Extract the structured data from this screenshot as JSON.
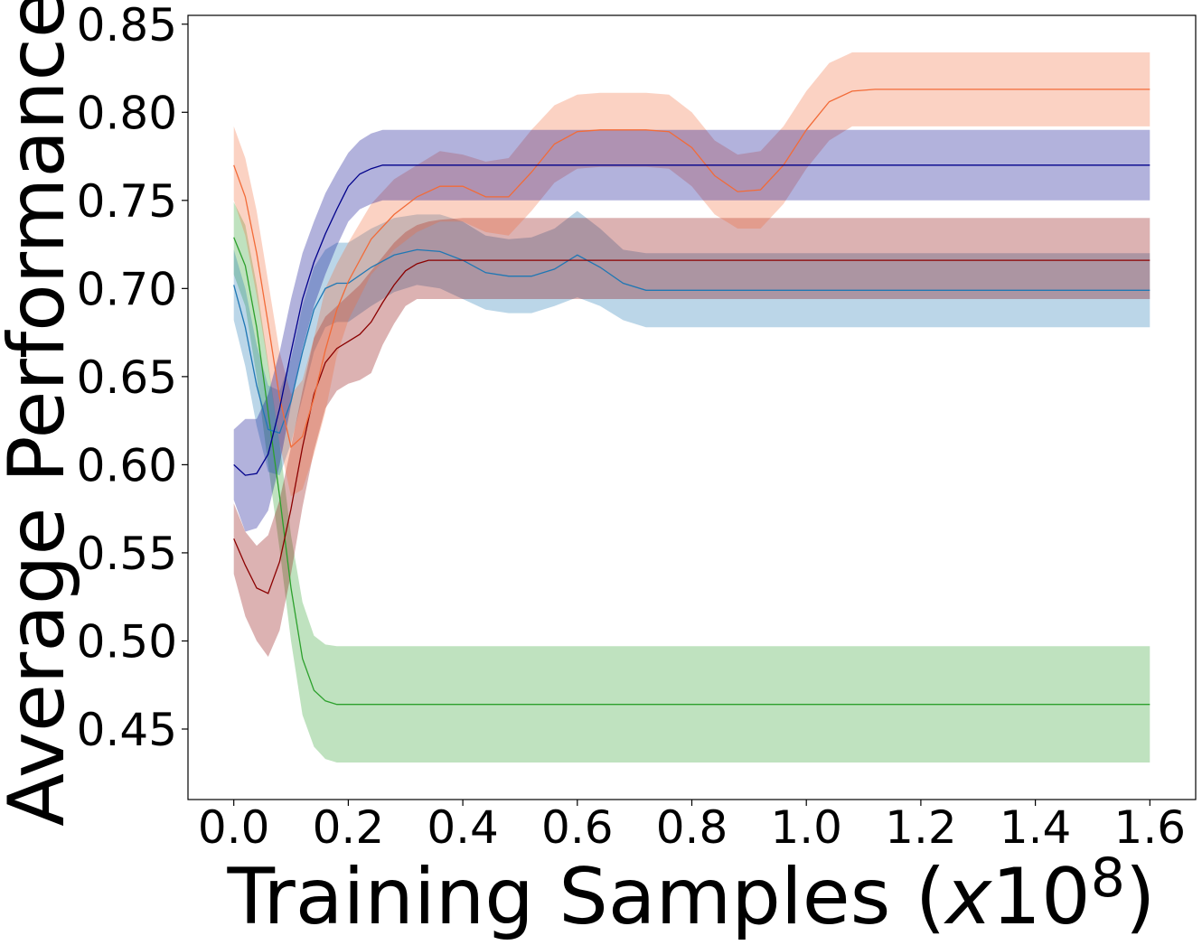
{
  "chart_data": {
    "type": "line",
    "xlabel": "Training Samples (",
    "xlabel_italic": "x",
    "xlabel_tail": "10",
    "xlabel_exponent": "8",
    "xlabel_close": ")",
    "ylabel": "Average Performance",
    "xlim": [
      -0.08,
      1.68
    ],
    "ylim": [
      0.41,
      0.855
    ],
    "x_ticks": [
      "0.0",
      "0.2",
      "0.4",
      "0.6",
      "0.8",
      "1.0",
      "1.2",
      "1.4",
      "1.6"
    ],
    "x_tick_values": [
      0.0,
      0.2,
      0.4,
      0.6,
      0.8,
      1.0,
      1.2,
      1.4,
      1.6
    ],
    "y_ticks": [
      "0.45",
      "0.50",
      "0.55",
      "0.60",
      "0.65",
      "0.70",
      "0.75",
      "0.80",
      "0.85"
    ],
    "y_tick_values": [
      0.45,
      0.5,
      0.55,
      0.6,
      0.65,
      0.7,
      0.75,
      0.8,
      0.85
    ],
    "grid": false,
    "band_opacity": 0.3,
    "series": [
      {
        "color": "#2ca02c",
        "x": [
          0.0,
          0.02,
          0.04,
          0.06,
          0.08,
          0.1,
          0.12,
          0.14,
          0.16,
          0.18,
          0.2,
          0.3,
          0.4,
          0.6,
          0.8,
          1.0,
          1.2,
          1.4,
          1.6
        ],
        "y": [
          0.729,
          0.713,
          0.678,
          0.63,
          0.582,
          0.53,
          0.49,
          0.472,
          0.466,
          0.464,
          0.464,
          0.464,
          0.464,
          0.464,
          0.464,
          0.464,
          0.464,
          0.464,
          0.464
        ],
        "upper": [
          0.749,
          0.736,
          0.702,
          0.658,
          0.612,
          0.56,
          0.522,
          0.503,
          0.498,
          0.497,
          0.497,
          0.497,
          0.497,
          0.497,
          0.497,
          0.497,
          0.497,
          0.497,
          0.497
        ],
        "lower": [
          0.708,
          0.69,
          0.65,
          0.6,
          0.552,
          0.5,
          0.458,
          0.44,
          0.433,
          0.431,
          0.431,
          0.431,
          0.431,
          0.431,
          0.431,
          0.431,
          0.431,
          0.431,
          0.431
        ]
      },
      {
        "color": "#1f77b4",
        "x": [
          0.0,
          0.02,
          0.04,
          0.06,
          0.08,
          0.1,
          0.12,
          0.14,
          0.16,
          0.18,
          0.2,
          0.24,
          0.28,
          0.32,
          0.36,
          0.4,
          0.44,
          0.48,
          0.52,
          0.56,
          0.6,
          0.64,
          0.68,
          0.72,
          0.8,
          1.0,
          1.2,
          1.4,
          1.6
        ],
        "y": [
          0.702,
          0.678,
          0.645,
          0.62,
          0.618,
          0.636,
          0.664,
          0.688,
          0.7,
          0.703,
          0.703,
          0.712,
          0.719,
          0.722,
          0.721,
          0.716,
          0.709,
          0.707,
          0.707,
          0.711,
          0.719,
          0.712,
          0.703,
          0.699,
          0.699,
          0.699,
          0.699,
          0.699,
          0.699
        ],
        "upper": [
          0.722,
          0.7,
          0.668,
          0.645,
          0.642,
          0.66,
          0.69,
          0.712,
          0.722,
          0.726,
          0.726,
          0.734,
          0.74,
          0.742,
          0.742,
          0.738,
          0.73,
          0.728,
          0.729,
          0.734,
          0.744,
          0.734,
          0.722,
          0.72,
          0.72,
          0.72,
          0.72,
          0.72,
          0.72
        ],
        "lower": [
          0.682,
          0.656,
          0.622,
          0.596,
          0.594,
          0.612,
          0.638,
          0.664,
          0.678,
          0.681,
          0.681,
          0.69,
          0.698,
          0.702,
          0.7,
          0.694,
          0.688,
          0.686,
          0.686,
          0.69,
          0.695,
          0.69,
          0.682,
          0.678,
          0.678,
          0.678,
          0.678,
          0.678,
          0.678
        ]
      },
      {
        "color": "#8b0000",
        "x": [
          0.0,
          0.02,
          0.04,
          0.06,
          0.08,
          0.1,
          0.12,
          0.14,
          0.16,
          0.18,
          0.2,
          0.22,
          0.24,
          0.26,
          0.28,
          0.3,
          0.32,
          0.34,
          0.36,
          0.4,
          0.6,
          0.8,
          1.0,
          1.2,
          1.4,
          1.6
        ],
        "y": [
          0.558,
          0.543,
          0.53,
          0.527,
          0.545,
          0.575,
          0.61,
          0.64,
          0.658,
          0.666,
          0.67,
          0.674,
          0.681,
          0.692,
          0.702,
          0.71,
          0.714,
          0.716,
          0.716,
          0.716,
          0.716,
          0.716,
          0.716,
          0.716,
          0.716,
          0.716
        ],
        "upper": [
          0.578,
          0.562,
          0.554,
          0.56,
          0.58,
          0.61,
          0.642,
          0.672,
          0.684,
          0.69,
          0.696,
          0.702,
          0.71,
          0.718,
          0.726,
          0.732,
          0.736,
          0.738,
          0.739,
          0.74,
          0.74,
          0.74,
          0.74,
          0.74,
          0.74,
          0.74
        ],
        "lower": [
          0.538,
          0.514,
          0.5,
          0.491,
          0.506,
          0.538,
          0.576,
          0.608,
          0.632,
          0.642,
          0.646,
          0.648,
          0.652,
          0.668,
          0.68,
          0.69,
          0.694,
          0.694,
          0.694,
          0.694,
          0.694,
          0.694,
          0.694,
          0.694,
          0.694,
          0.694
        ]
      },
      {
        "color": "#f26b38",
        "x": [
          0.0,
          0.02,
          0.04,
          0.06,
          0.08,
          0.1,
          0.12,
          0.14,
          0.16,
          0.18,
          0.2,
          0.24,
          0.28,
          0.32,
          0.36,
          0.4,
          0.44,
          0.48,
          0.52,
          0.56,
          0.6,
          0.64,
          0.68,
          0.72,
          0.76,
          0.8,
          0.84,
          0.88,
          0.92,
          0.96,
          1.0,
          1.04,
          1.08,
          1.12,
          1.2,
          1.4,
          1.6
        ],
        "y": [
          0.77,
          0.752,
          0.72,
          0.68,
          0.638,
          0.61,
          0.616,
          0.638,
          0.665,
          0.688,
          0.704,
          0.728,
          0.742,
          0.752,
          0.758,
          0.758,
          0.752,
          0.752,
          0.766,
          0.782,
          0.789,
          0.79,
          0.79,
          0.79,
          0.789,
          0.78,
          0.764,
          0.755,
          0.756,
          0.77,
          0.79,
          0.806,
          0.812,
          0.813,
          0.813,
          0.813,
          0.813
        ],
        "upper": [
          0.792,
          0.774,
          0.744,
          0.704,
          0.664,
          0.64,
          0.648,
          0.672,
          0.7,
          0.714,
          0.726,
          0.748,
          0.762,
          0.77,
          0.778,
          0.776,
          0.772,
          0.774,
          0.79,
          0.804,
          0.81,
          0.811,
          0.811,
          0.811,
          0.81,
          0.8,
          0.784,
          0.776,
          0.778,
          0.792,
          0.812,
          0.828,
          0.834,
          0.834,
          0.834,
          0.834,
          0.834
        ],
        "lower": [
          0.75,
          0.73,
          0.696,
          0.656,
          0.612,
          0.582,
          0.586,
          0.606,
          0.63,
          0.662,
          0.682,
          0.708,
          0.722,
          0.732,
          0.738,
          0.738,
          0.732,
          0.73,
          0.744,
          0.76,
          0.768,
          0.769,
          0.769,
          0.769,
          0.768,
          0.758,
          0.742,
          0.734,
          0.734,
          0.748,
          0.768,
          0.784,
          0.792,
          0.792,
          0.792,
          0.792,
          0.792
        ]
      },
      {
        "color": "#00008b",
        "x": [
          0.0,
          0.02,
          0.04,
          0.06,
          0.08,
          0.1,
          0.12,
          0.14,
          0.16,
          0.18,
          0.2,
          0.22,
          0.24,
          0.26,
          0.28,
          0.3,
          0.34,
          0.4,
          0.6,
          0.8,
          1.0,
          1.2,
          1.4,
          1.6
        ],
        "y": [
          0.6,
          0.594,
          0.595,
          0.606,
          0.632,
          0.664,
          0.694,
          0.715,
          0.731,
          0.745,
          0.758,
          0.765,
          0.768,
          0.77,
          0.77,
          0.77,
          0.77,
          0.77,
          0.77,
          0.77,
          0.77,
          0.77,
          0.77,
          0.77
        ],
        "upper": [
          0.62,
          0.626,
          0.626,
          0.64,
          0.664,
          0.694,
          0.72,
          0.738,
          0.754,
          0.766,
          0.777,
          0.784,
          0.788,
          0.79,
          0.79,
          0.79,
          0.79,
          0.79,
          0.79,
          0.79,
          0.79,
          0.79,
          0.79,
          0.79
        ],
        "lower": [
          0.58,
          0.562,
          0.564,
          0.574,
          0.6,
          0.634,
          0.666,
          0.69,
          0.708,
          0.724,
          0.738,
          0.745,
          0.748,
          0.75,
          0.75,
          0.75,
          0.75,
          0.75,
          0.75,
          0.75,
          0.75,
          0.75,
          0.75,
          0.75
        ]
      }
    ]
  }
}
